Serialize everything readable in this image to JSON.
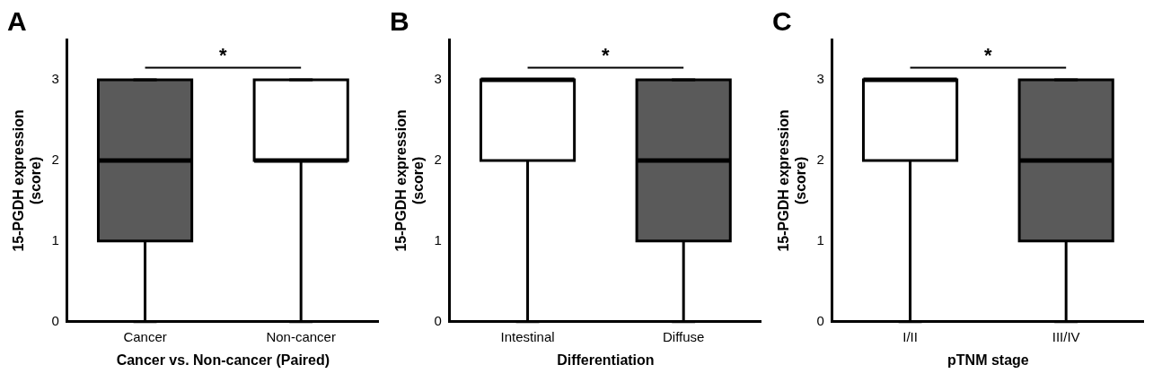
{
  "chart_data": [
    {
      "type": "box",
      "title": "A",
      "xlabel": "Cancer vs. Non-cancer (Paired)",
      "ylabel": "15-PGDH expression (score)",
      "categories": [
        "Cancer",
        "Non-cancer"
      ],
      "colors": [
        "#5a5a5a",
        "#ffffff"
      ],
      "boxes": [
        {
          "low": 0,
          "q1": 1,
          "median": 2,
          "q3": 3,
          "high": 3
        },
        {
          "low": 0,
          "q1": 2,
          "median": 2,
          "q3": 3,
          "high": 3
        }
      ],
      "ylim": [
        0,
        3.5
      ],
      "yticks": [
        0,
        1,
        2,
        3
      ],
      "grid": false,
      "legend": false,
      "annotations": [
        "*"
      ]
    },
    {
      "type": "box",
      "title": "B",
      "xlabel": "Differentiation",
      "ylabel": "15-PGDH expression (score)",
      "categories": [
        "Intestinal",
        "Diffuse"
      ],
      "colors": [
        "#ffffff",
        "#5a5a5a"
      ],
      "boxes": [
        {
          "low": 0,
          "q1": 2,
          "median": 3,
          "q3": 3,
          "high": 3
        },
        {
          "low": 0,
          "q1": 1,
          "median": 2,
          "q3": 3,
          "high": 3
        }
      ],
      "ylim": [
        0,
        3.5
      ],
      "yticks": [
        0,
        1,
        2,
        3
      ],
      "grid": false,
      "legend": false,
      "annotations": [
        "*"
      ]
    },
    {
      "type": "box",
      "title": "C",
      "xlabel": "pTNM stage",
      "ylabel": "15-PGDH expression (score)",
      "categories": [
        "I/II",
        "III/IV"
      ],
      "colors": [
        "#ffffff",
        "#5a5a5a"
      ],
      "boxes": [
        {
          "low": 0,
          "q1": 2,
          "median": 3,
          "q3": 3,
          "high": 3
        },
        {
          "low": 0,
          "q1": 1,
          "median": 2,
          "q3": 3,
          "high": 3
        }
      ],
      "ylim": [
        0,
        3.5
      ],
      "yticks": [
        0,
        1,
        2,
        3
      ],
      "grid": false,
      "legend": false,
      "annotations": [
        "*"
      ]
    }
  ]
}
